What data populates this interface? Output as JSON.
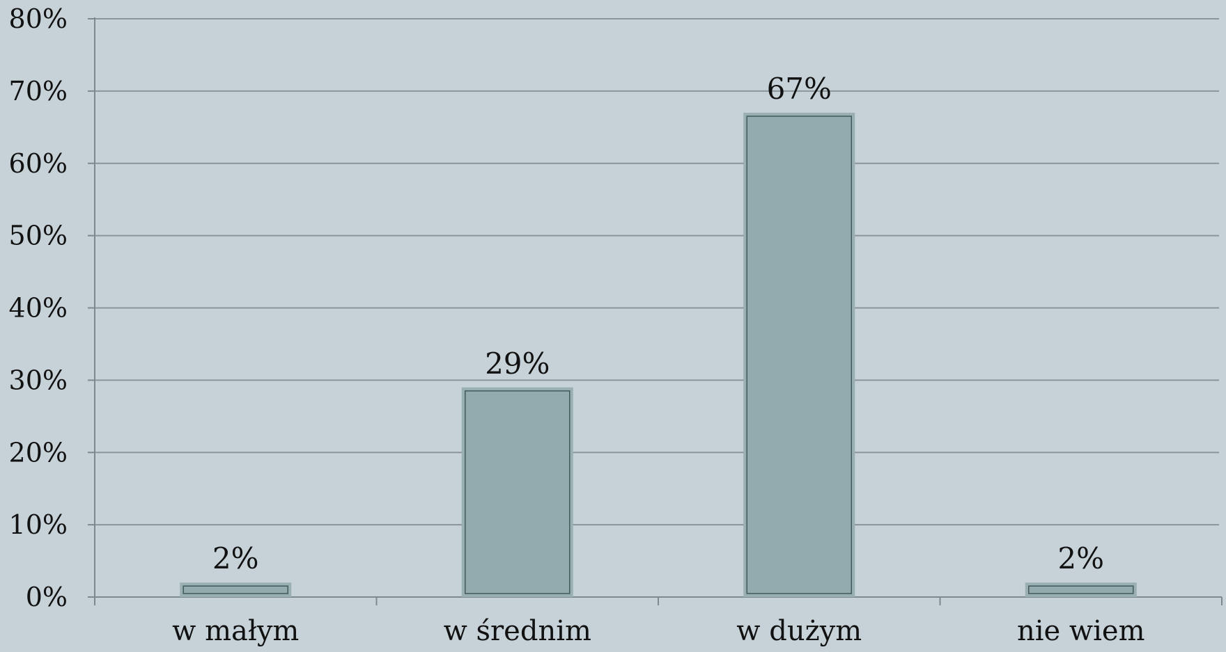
{
  "chart_data": {
    "type": "bar",
    "categories": [
      "w małym",
      "w średnim",
      "w dużym",
      "nie wiem"
    ],
    "values": [
      2,
      29,
      67,
      2
    ],
    "data_labels": [
      "2%",
      "29%",
      "67%",
      "2%"
    ],
    "ylim": [
      0,
      80
    ],
    "y_ticks": [
      0,
      10,
      20,
      30,
      40,
      50,
      60,
      70,
      80
    ],
    "y_tick_labels": [
      "0%",
      "10%",
      "20%",
      "30%",
      "40%",
      "50%",
      "60%",
      "70%",
      "80%"
    ],
    "title": "",
    "xlabel": "",
    "ylabel": "",
    "grid": true,
    "legend": "none",
    "colors": {
      "background": "#c6d2d8",
      "bar_fill": "#93aaae",
      "bar_outer": "#9aafb2",
      "bar_inner_stroke": "#3f5a5b",
      "gridline": "#8a9598",
      "axis": "#7d8a8d"
    }
  }
}
